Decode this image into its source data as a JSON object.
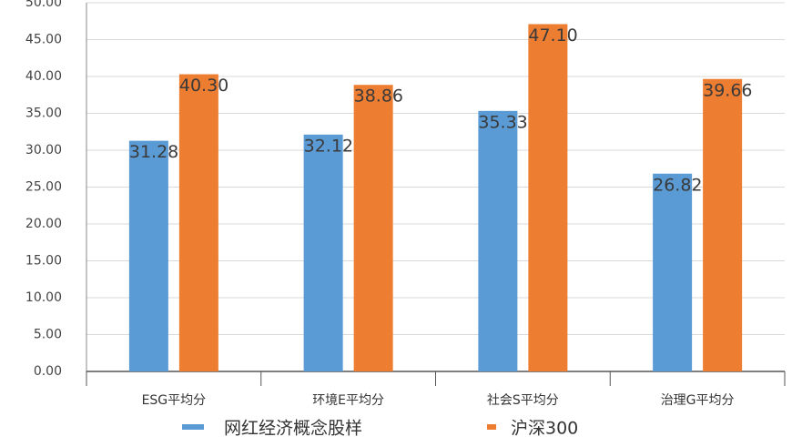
{
  "chart_data": {
    "type": "bar",
    "categories": [
      "ESG平均分",
      "环境E平均分",
      "社会S平均分",
      "治理G平均分"
    ],
    "series": [
      {
        "name": "网红经济概念股样",
        "color": "#5b9bd5",
        "values": [
          31.28,
          32.12,
          35.33,
          26.82
        ],
        "value_labels": [
          "31.28",
          "32.12",
          "35.33",
          "26.82"
        ]
      },
      {
        "name": "沪深300",
        "color": "#ed7d31",
        "values": [
          40.3,
          38.86,
          47.1,
          39.66
        ],
        "value_labels": [
          "40.30",
          "38.86",
          "47.10",
          "39.66"
        ]
      }
    ],
    "ylim": [
      0,
      50
    ],
    "yticks": [
      {
        "value": 0,
        "label": "0.00"
      },
      {
        "value": 5,
        "label": "5.00"
      },
      {
        "value": 10,
        "label": "10.00"
      },
      {
        "value": 15,
        "label": "15.00"
      },
      {
        "value": 20,
        "label": "20.00"
      },
      {
        "value": 25,
        "label": "25.00"
      },
      {
        "value": 30,
        "label": "30.00"
      },
      {
        "value": 35,
        "label": "35.00"
      },
      {
        "value": 40,
        "label": "40.00"
      },
      {
        "value": 45,
        "label": "45.00"
      },
      {
        "value": 50,
        "label": "50.00"
      }
    ],
    "grid": true,
    "legend": "bottom"
  }
}
